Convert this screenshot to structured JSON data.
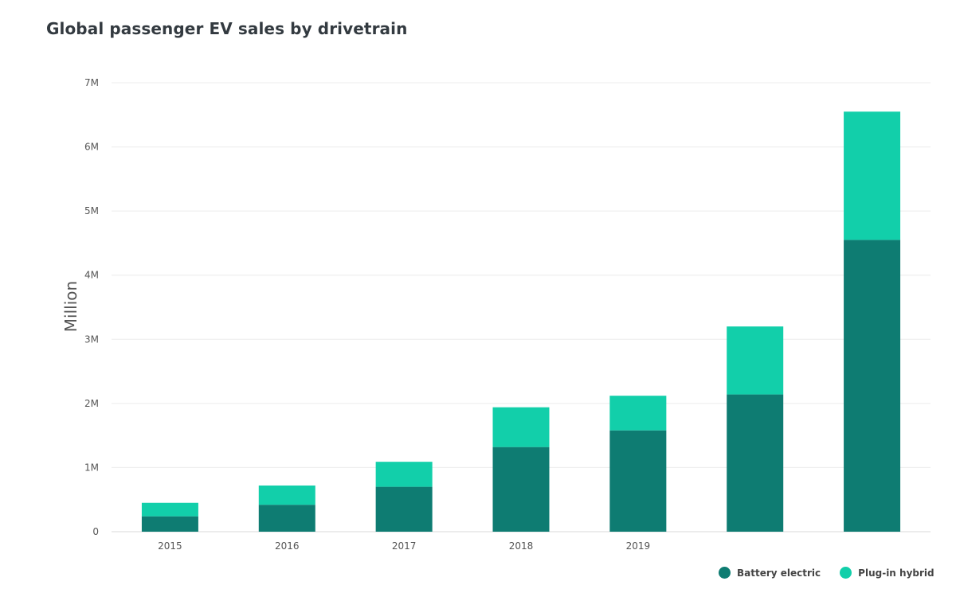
{
  "chart_data": {
    "type": "bar",
    "stacked": true,
    "title": "Global passenger EV sales by drivetrain",
    "ylabel": "Million",
    "xlabel": "",
    "categories": [
      "2015",
      "2016",
      "2017",
      "2018",
      "2019",
      "",
      ""
    ],
    "series": [
      {
        "name": "Battery electric",
        "color": "#0e7c72",
        "values": [
          0.24,
          0.42,
          0.7,
          1.32,
          1.58,
          2.14,
          4.55
        ]
      },
      {
        "name": "Plug-in hybrid",
        "color": "#12cfaa",
        "values": [
          0.21,
          0.3,
          0.39,
          0.62,
          0.54,
          1.06,
          2.0
        ]
      }
    ],
    "ylim": [
      0,
      7
    ],
    "yticks": [
      0,
      1,
      2,
      3,
      4,
      5,
      6,
      7
    ],
    "ytick_labels": [
      "0",
      "1M",
      "2M",
      "3M",
      "4M",
      "5M",
      "6M",
      "7M"
    ],
    "grid": true,
    "legend_position": "bottom-right"
  }
}
